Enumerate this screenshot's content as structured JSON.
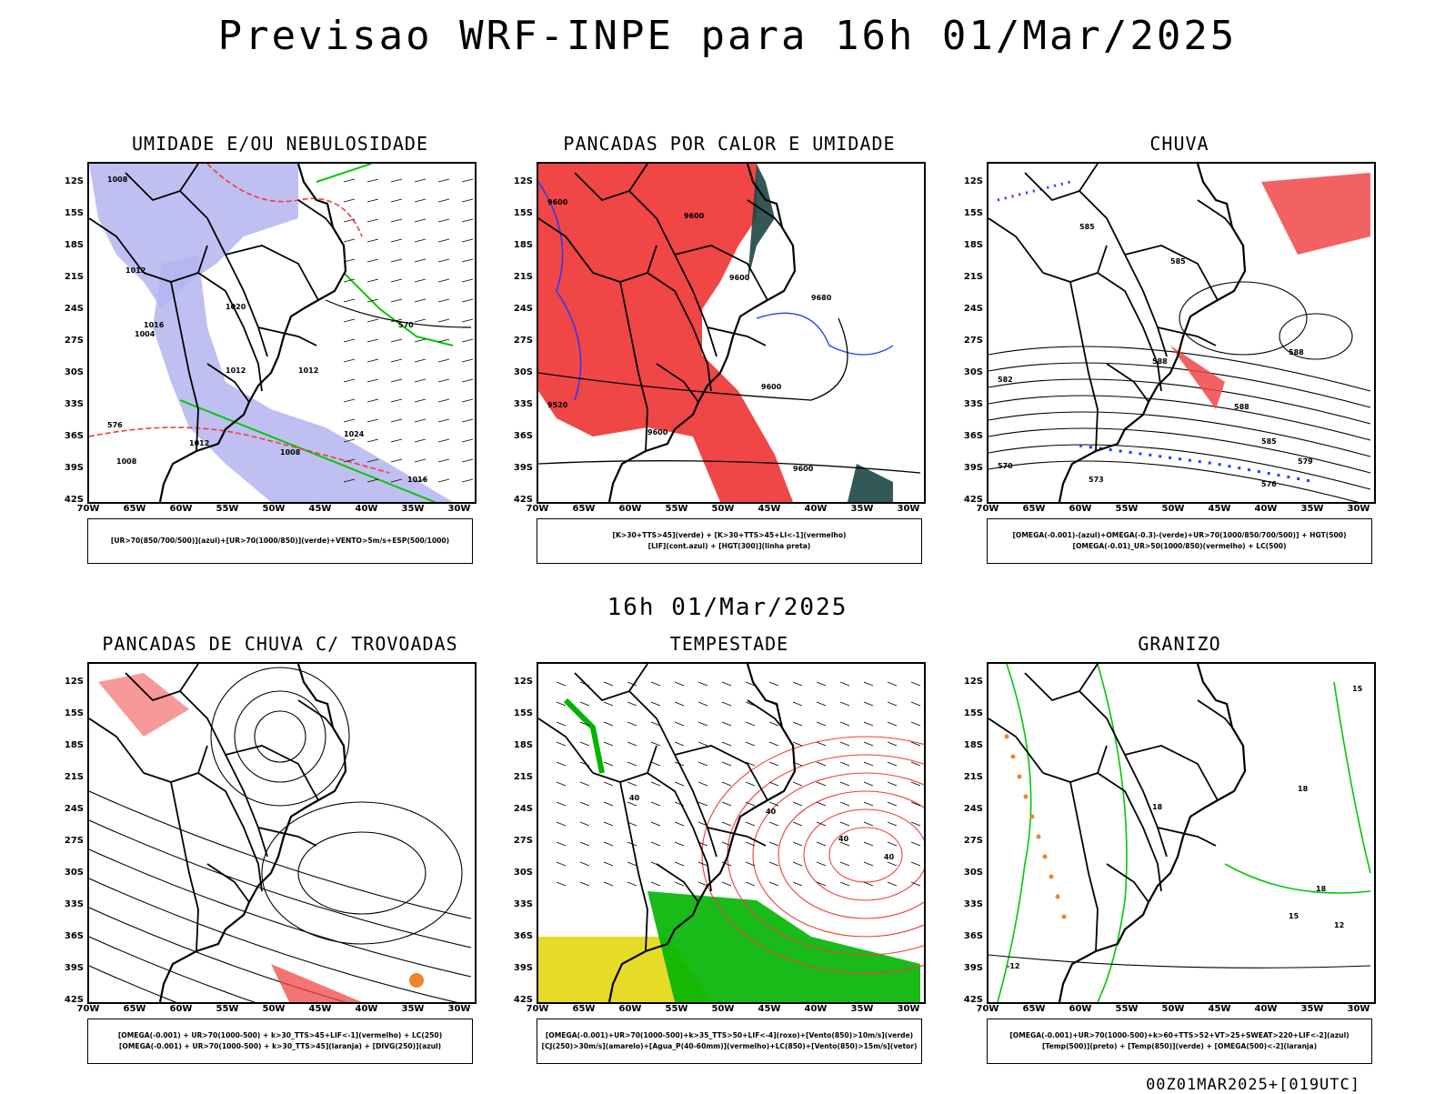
{
  "header": {
    "title": "Previsao WRF-INPE  para 16h 01/Mar/2025",
    "subtitle": "16h 01/Mar/2025",
    "footer": "00Z01MAR2025+[019UTC]"
  },
  "axes": {
    "lat_labels": [
      "12S",
      "15S",
      "18S",
      "21S",
      "24S",
      "27S",
      "30S",
      "33S",
      "36S",
      "39S",
      "42S"
    ],
    "lon_labels": [
      "70W",
      "65W",
      "60W",
      "55W",
      "50W",
      "45W",
      "40W",
      "35W",
      "30W"
    ]
  },
  "colors": {
    "blue_shade": "#b4b4f0",
    "green_contour": "#00c800",
    "red_contour": "#f03c3c",
    "red_fill": "#f04646",
    "dark_teal": "#1e4646",
    "blue_contour": "#1e3cff",
    "yellow_fill": "#e6dc28",
    "orange": "#f08228"
  },
  "panels": [
    {
      "title": "UMIDADE E/OU NEBULOSIDADE",
      "legend": [
        "[UR>70(850/700/500)](azul)+[UR>70(1000/850)](verde)+VENTO>5m/s+ESP(500/1000)"
      ],
      "contour_labels": [
        "1008",
        "1012",
        "1016",
        "1020",
        "1024",
        "1004",
        "1012",
        "1008",
        "1012",
        "1016",
        "570",
        "576",
        "1012",
        "1008"
      ]
    },
    {
      "title": "PANCADAS POR CALOR E UMIDADE",
      "legend": [
        "[K>30+TTS>45](verde) + [K>30+TTS>45+LI<-1](vermelho)",
        "[LIF](cont.azul) + [HGT(300)](linha preta)"
      ],
      "contour_labels": [
        "9600",
        "9600",
        "9600",
        "9680",
        "9600",
        "9520",
        "9600",
        "9600"
      ]
    },
    {
      "title": "CHUVA",
      "legend": [
        "[OMEGA(-0.001)-(azul)+OMEGA(-0.3)-(verde)+UR>70(1000/850/700/500)] + HGT(500)",
        "[OMEGA(-0.01)_UR>50(1000/850)(vermelho) + LC(500)"
      ],
      "contour_labels": [
        "585",
        "585",
        "588",
        "588",
        "588",
        "585",
        "579",
        "576",
        "573",
        "570",
        "582"
      ]
    },
    {
      "title": "PANCADAS DE CHUVA C/ TROVOADAS",
      "legend": [
        "[OMEGA(-0.001) + UR>70(1000-500) + k>30_TTS>45+LIF<-1](vermelho) + LC(250)",
        "[OMEGA(-0.001) + UR>70(1000-500) + k>30_TTS>45](laranja) + [DIVG(250)](azul)"
      ],
      "contour_labels": []
    },
    {
      "title": "TEMPESTADE",
      "legend": [
        "[OMEGA(-0.001)+UR>70(1000-500)+k>35_TTS>50+LIF<-4](roxo)+[Vento(850)>10m/s](verde)",
        "[CJ(250)>30m/s](amarelo)+[Agua_P(40-60mm)](vermelho)+LC(850)+[Vento(850)>15m/s](vetor)"
      ],
      "contour_labels": [
        "40",
        "40",
        "40",
        "40"
      ]
    },
    {
      "title": "GRANIZO",
      "legend": [
        "[OMEGA(-0.001)+UR>70(1000-500)+k>60+TTS>52+VT>25+SWEAT>220+LIF<-2](azul)",
        "[Temp(500)](preto) + [Temp(850)](verde) + [OMEGA(500)<-2](laranja)"
      ],
      "contour_labels": [
        "-12",
        "15",
        "18",
        "18",
        "18",
        "15",
        "12"
      ]
    }
  ]
}
